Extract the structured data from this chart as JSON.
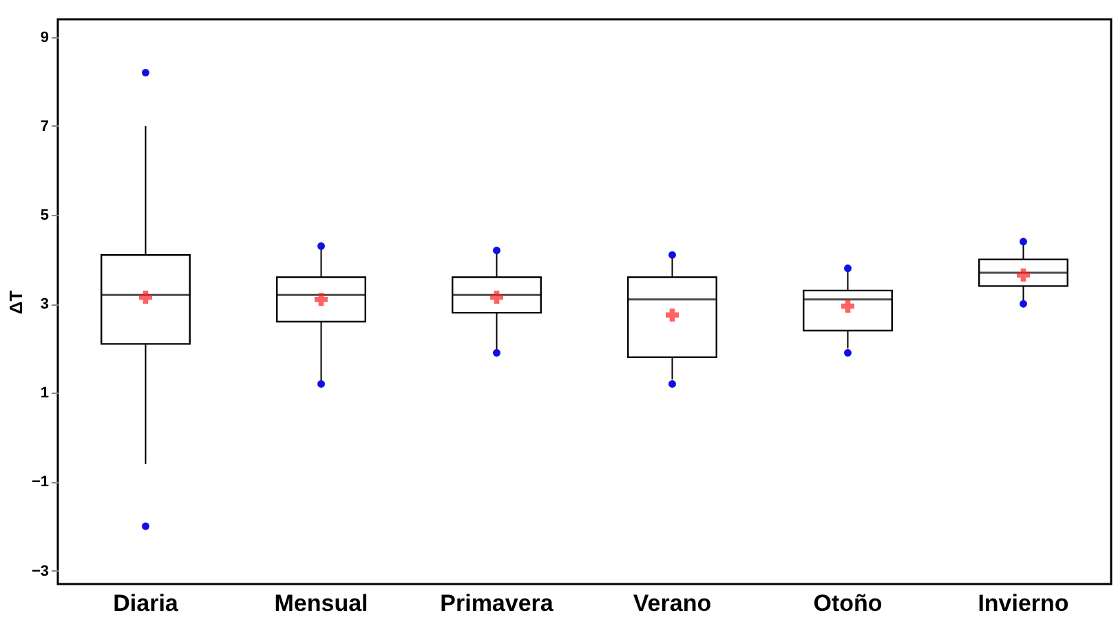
{
  "chart_data": {
    "type": "box",
    "ylabel": "ΔT",
    "categories": [
      "Diaria",
      "Mensual",
      "Primavera",
      "Verano",
      "Otoño",
      "Invierno"
    ],
    "boxes": [
      {
        "low": -0.6,
        "q1": 2.1,
        "median": 3.2,
        "q3": 4.1,
        "high": 7.0,
        "mean": 3.15,
        "outliers": [
          8.2,
          -2.0
        ]
      },
      {
        "low": 1.2,
        "q1": 2.6,
        "median": 3.2,
        "q3": 3.6,
        "high": 4.3,
        "mean": 3.1,
        "outliers": [
          4.3,
          1.2
        ]
      },
      {
        "low": 1.9,
        "q1": 2.8,
        "median": 3.2,
        "q3": 3.6,
        "high": 4.2,
        "mean": 3.15,
        "outliers": [
          4.2,
          1.9
        ]
      },
      {
        "low": 1.3,
        "q1": 1.8,
        "median": 3.1,
        "q3": 3.6,
        "high": 4.1,
        "mean": 2.75,
        "outliers": [
          4.1,
          1.2
        ]
      },
      {
        "low": 2.0,
        "q1": 2.4,
        "median": 3.1,
        "q3": 3.3,
        "high": 3.8,
        "mean": 2.95,
        "outliers": [
          3.8,
          1.9
        ]
      },
      {
        "low": 3.0,
        "q1": 3.4,
        "median": 3.7,
        "q3": 4.0,
        "high": 4.4,
        "mean": 3.65,
        "outliers": [
          4.4,
          3.0
        ]
      }
    ],
    "ylim": [
      -3.3,
      9.4
    ],
    "yticks": [
      -3,
      -1,
      1,
      3,
      5,
      7,
      9
    ],
    "marker": "circle"
  }
}
